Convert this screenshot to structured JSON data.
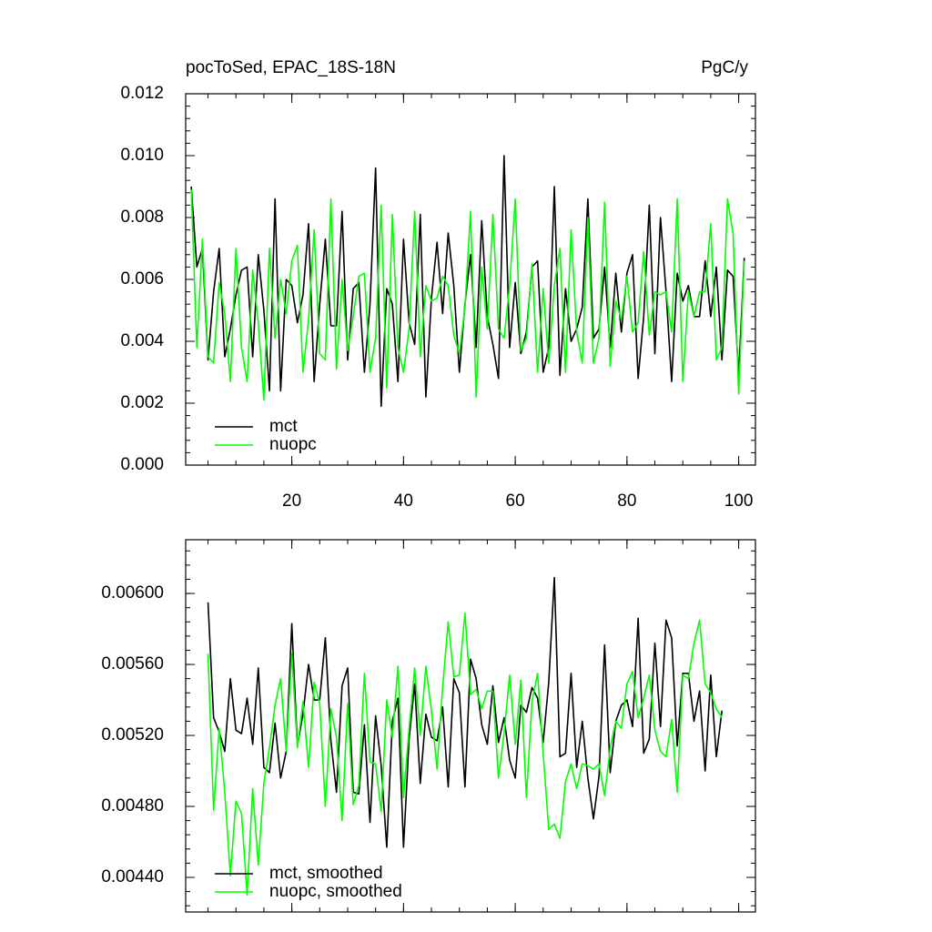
{
  "chart_data": [
    {
      "type": "line",
      "title": "pocToSed, EPAC_18S-18N",
      "right_title": "PgC/y",
      "x": [
        2,
        3,
        4,
        5,
        6,
        7,
        8,
        9,
        10,
        11,
        12,
        13,
        14,
        15,
        16,
        17,
        18,
        19,
        20,
        21,
        22,
        23,
        24,
        25,
        26,
        27,
        28,
        29,
        30,
        31,
        32,
        33,
        34,
        35,
        36,
        37,
        38,
        39,
        40,
        41,
        42,
        43,
        44,
        45,
        46,
        47,
        48,
        49,
        50,
        51,
        52,
        53,
        54,
        55,
        56,
        57,
        58,
        59,
        60,
        61,
        62,
        63,
        64,
        65,
        66,
        67,
        68,
        69,
        70,
        71,
        72,
        73,
        74,
        75,
        76,
        77,
        78,
        79,
        80,
        81,
        82,
        83,
        84,
        85,
        86,
        87,
        88,
        89,
        90,
        91,
        92,
        93,
        94,
        95,
        96,
        97,
        98,
        99,
        100,
        101
      ],
      "series": [
        {
          "name": "mct",
          "color": "#000000",
          "values": [
            0.009,
            0.0064,
            0.007,
            0.0034,
            0.0056,
            0.007,
            0.0035,
            0.0044,
            0.0055,
            0.0063,
            0.0064,
            0.0035,
            0.0068,
            0.005,
            0.0024,
            0.0086,
            0.0024,
            0.006,
            0.0058,
            0.0046,
            0.0055,
            0.0078,
            0.0027,
            0.0052,
            0.0073,
            0.0045,
            0.0045,
            0.0082,
            0.0034,
            0.0057,
            0.0059,
            0.003,
            0.0052,
            0.0096,
            0.0019,
            0.0057,
            0.0052,
            0.0027,
            0.0073,
            0.0046,
            0.0039,
            0.0081,
            0.0022,
            0.0054,
            0.0072,
            0.0049,
            0.0075,
            0.0058,
            0.003,
            0.0052,
            0.0068,
            0.0038,
            0.0079,
            0.0048,
            0.0039,
            0.0028,
            0.01,
            0.0038,
            0.0059,
            0.0036,
            0.0043,
            0.0064,
            0.0066,
            0.003,
            0.0038,
            0.009,
            0.0029,
            0.0057,
            0.004,
            0.0044,
            0.0051,
            0.0086,
            0.0041,
            0.0044,
            0.0064,
            0.0038,
            0.0062,
            0.0043,
            0.0062,
            0.0068,
            0.0028,
            0.0048,
            0.0084,
            0.0036,
            0.008,
            0.0056,
            0.0027,
            0.0062,
            0.0053,
            0.0058,
            0.0048,
            0.0048,
            0.0066,
            0.0048,
            0.0064,
            0.0034,
            0.0063,
            0.0061,
            0.0029,
            0.0067
          ]
        },
        {
          "name": "nuopc",
          "color": "#00ff00",
          "values": [
            0.0089,
            0.0038,
            0.0073,
            0.0035,
            0.0033,
            0.0059,
            0.0049,
            0.0027,
            0.007,
            0.0038,
            0.0027,
            0.0063,
            0.0046,
            0.0021,
            0.007,
            0.0041,
            0.006,
            0.0049,
            0.0066,
            0.0071,
            0.003,
            0.0047,
            0.0076,
            0.0036,
            0.0034,
            0.0086,
            0.0031,
            0.006,
            0.0037,
            0.0048,
            0.0061,
            0.0062,
            0.003,
            0.0041,
            0.0084,
            0.0025,
            0.0081,
            0.0038,
            0.003,
            0.0044,
            0.0082,
            0.0035,
            0.0058,
            0.0053,
            0.0054,
            0.0061,
            0.0058,
            0.0042,
            0.0036,
            0.0051,
            0.0082,
            0.0022,
            0.0064,
            0.0044,
            0.0081,
            0.0044,
            0.0041,
            0.0058,
            0.0086,
            0.0037,
            0.0041,
            0.0065,
            0.003,
            0.0057,
            0.0033,
            0.0058,
            0.007,
            0.003,
            0.0076,
            0.0043,
            0.0033,
            0.008,
            0.0033,
            0.0041,
            0.0085,
            0.0032,
            0.0053,
            0.0047,
            0.0061,
            0.0043,
            0.0046,
            0.0069,
            0.0042,
            0.0056,
            0.0055,
            0.0056,
            0.0043,
            0.0086,
            0.0027,
            0.0056,
            0.0048,
            0.0056,
            0.0056,
            0.0078,
            0.0034,
            0.0038,
            0.0086,
            0.0075,
            0.0023,
            0.0066
          ]
        }
      ],
      "xlim": [
        1,
        103
      ],
      "xticks": [
        20,
        40,
        60,
        80,
        100
      ],
      "ylim": [
        0,
        0.012
      ],
      "yticks": [
        {
          "value": 0,
          "label": "0.000"
        },
        {
          "value": 0.002,
          "label": "0.002"
        },
        {
          "value": 0.004,
          "label": "0.004"
        },
        {
          "value": 0.006,
          "label": "0.006"
        },
        {
          "value": 0.008,
          "label": "0.008"
        },
        {
          "value": 0.01,
          "label": "0.010"
        },
        {
          "value": 0.012,
          "label": "0.012"
        }
      ],
      "legend": "lower left",
      "show_xtick_labels": true
    },
    {
      "type": "line",
      "x": [
        5,
        6,
        7,
        8,
        9,
        10,
        11,
        12,
        13,
        14,
        15,
        16,
        17,
        18,
        19,
        20,
        21,
        22,
        23,
        24,
        25,
        26,
        27,
        28,
        29,
        30,
        31,
        32,
        33,
        34,
        35,
        36,
        37,
        38,
        39,
        40,
        41,
        42,
        43,
        44,
        45,
        46,
        47,
        48,
        49,
        50,
        51,
        52,
        53,
        54,
        55,
        56,
        57,
        58,
        59,
        60,
        61,
        62,
        63,
        64,
        65,
        66,
        67,
        68,
        69,
        70,
        71,
        72,
        73,
        74,
        75,
        76,
        77,
        78,
        79,
        80,
        81,
        82,
        83,
        84,
        85,
        86,
        87,
        88,
        89,
        90,
        91,
        92,
        93,
        94,
        95,
        96,
        97
      ],
      "series": [
        {
          "name": "mct, smoothed",
          "color": "#000000",
          "values": [
            0.00595,
            0.0053,
            0.00522,
            0.00511,
            0.00552,
            0.00523,
            0.00521,
            0.00541,
            0.00515,
            0.00558,
            0.00502,
            0.00499,
            0.00527,
            0.00496,
            0.00511,
            0.00583,
            0.00514,
            0.00532,
            0.0056,
            0.0054,
            0.0054,
            0.00575,
            0.00517,
            0.00488,
            0.00548,
            0.00558,
            0.00488,
            0.00487,
            0.00526,
            0.00471,
            0.00531,
            0.00503,
            0.00457,
            0.00528,
            0.00541,
            0.00457,
            0.00518,
            0.00549,
            0.00493,
            0.00532,
            0.00519,
            0.00517,
            0.00536,
            0.00491,
            0.00552,
            0.00544,
            0.00491,
            0.00563,
            0.00552,
            0.00526,
            0.00515,
            0.00548,
            0.00516,
            0.0053,
            0.00506,
            0.00496,
            0.00537,
            0.00533,
            0.00547,
            0.00541,
            0.00516,
            0.0055,
            0.00609,
            0.00508,
            0.0051,
            0.00555,
            0.00502,
            0.00528,
            0.00496,
            0.00473,
            0.00497,
            0.00571,
            0.00499,
            0.00528,
            0.00537,
            0.0054,
            0.00525,
            0.00586,
            0.0051,
            0.00518,
            0.00572,
            0.00525,
            0.00585,
            0.00575,
            0.00514,
            0.00555,
            0.00555,
            0.00528,
            0.00545,
            0.005,
            0.00554,
            0.00508,
            0.00534
          ]
        },
        {
          "name": "nuopc, smoothed",
          "color": "#00ff00",
          "values": [
            0.00566,
            0.00478,
            0.00524,
            0.00488,
            0.00441,
            0.00483,
            0.00476,
            0.0043,
            0.0049,
            0.00447,
            0.00493,
            0.00513,
            0.00537,
            0.00552,
            0.00511,
            0.00566,
            0.00513,
            0.00539,
            0.00502,
            0.0055,
            0.00538,
            0.0048,
            0.00535,
            0.00519,
            0.00472,
            0.00538,
            0.00481,
            0.00492,
            0.00555,
            0.00505,
            0.00504,
            0.00477,
            0.0054,
            0.00519,
            0.00559,
            0.00485,
            0.00524,
            0.00558,
            0.0052,
            0.00559,
            0.00534,
            0.00501,
            0.00547,
            0.00584,
            0.00553,
            0.00554,
            0.00589,
            0.00543,
            0.00546,
            0.00535,
            0.00545,
            0.00545,
            0.00496,
            0.00521,
            0.00554,
            0.00515,
            0.00551,
            0.00485,
            0.00539,
            0.00555,
            0.0051,
            0.00467,
            0.0047,
            0.00462,
            0.00494,
            0.00504,
            0.0049,
            0.00504,
            0.00503,
            0.00501,
            0.00504,
            0.00486,
            0.00513,
            0.00528,
            0.00524,
            0.00549,
            0.00556,
            0.0053,
            0.00541,
            0.00554,
            0.00523,
            0.00511,
            0.00508,
            0.00529,
            0.00488,
            0.00554,
            0.00552,
            0.00572,
            0.00585,
            0.00549,
            0.00544,
            0.00535,
            0.0053
          ]
        }
      ],
      "xlim": [
        1,
        103
      ],
      "xticks": [
        20,
        40,
        60,
        80,
        100
      ],
      "ylim": [
        0.004205,
        0.006303
      ],
      "yticks": [
        {
          "value": 0.0044,
          "label": "0.00440"
        },
        {
          "value": 0.0048,
          "label": "0.00480"
        },
        {
          "value": 0.0052,
          "label": "0.00520"
        },
        {
          "value": 0.0056,
          "label": "0.00560"
        },
        {
          "value": 0.006,
          "label": "0.00600"
        }
      ],
      "legend": "lower left",
      "show_xtick_labels": false
    }
  ]
}
